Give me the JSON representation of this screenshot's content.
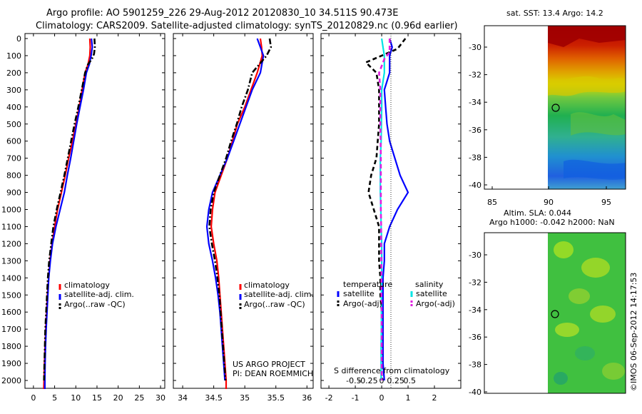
{
  "header": {
    "line1": "Argo profile: AO 5901259_226 29-Aug-2012 20120830_10 34.511S 90.473E",
    "line2": "Climatology: CARS2009. Satellite-adjusted climatology: synTS_20120829.nc (0.96d earlier)"
  },
  "side_text": {
    "sst_title": "sat. SST: 13.4 Argo: 14.2",
    "sla_title_1": "Altim. SLA: 0.044",
    "sla_title_2": "Argo h1000: -0.042 h2000: NaN",
    "credit": "©IMOS 06-Sep-2012 14:17:53",
    "project_1": "US ARGO PROJECT",
    "project_2": "PI: DEAN ROEMMICH"
  },
  "colors": {
    "climatology": "#ff0000",
    "satellite": "#0000ff",
    "argo": "#000000",
    "sal_sat": "#00e5e5",
    "sal_argo": "#e020e0"
  },
  "chart_data": [
    {
      "type": "line",
      "panel": "temperature",
      "ylim": [
        2050,
        0
      ],
      "xlim": [
        -2,
        31
      ],
      "xticks": [
        "0",
        "5",
        "10",
        "15",
        "20",
        "25",
        "30"
      ],
      "yticks": [
        "0",
        "100",
        "200",
        "300",
        "400",
        "500",
        "600",
        "700",
        "800",
        "900",
        "1000",
        "1100",
        "1200",
        "1300",
        "1400",
        "1500",
        "1600",
        "1700",
        "1800",
        "1900",
        "2000"
      ],
      "legend": [
        "climatology",
        "satellite-adj. clim.",
        "Argo(..raw -QC)"
      ],
      "series": [
        {
          "name": "climatology",
          "style": "solid",
          "color": "#ff0000",
          "points": [
            [
              13.3,
              0
            ],
            [
              13.4,
              50
            ],
            [
              13.3,
              100
            ],
            [
              12.9,
              150
            ],
            [
              12.2,
              200
            ],
            [
              11.5,
              300
            ],
            [
              10.8,
              400
            ],
            [
              10.0,
              500
            ],
            [
              9.2,
              600
            ],
            [
              8.3,
              700
            ],
            [
              7.5,
              800
            ],
            [
              6.6,
              900
            ],
            [
              5.7,
              1000
            ],
            [
              5.0,
              1100
            ],
            [
              4.4,
              1200
            ],
            [
              3.9,
              1300
            ],
            [
              3.6,
              1400
            ],
            [
              3.3,
              1500
            ],
            [
              3.1,
              1600
            ],
            [
              2.9,
              1700
            ],
            [
              2.75,
              1800
            ],
            [
              2.6,
              1900
            ],
            [
              2.5,
              2000
            ],
            [
              2.45,
              2050
            ]
          ]
        },
        {
          "name": "satellite-adj. clim.",
          "style": "solid",
          "color": "#0000ff",
          "points": [
            [
              13.7,
              0
            ],
            [
              13.9,
              50
            ],
            [
              13.6,
              100
            ],
            [
              13.2,
              150
            ],
            [
              12.5,
              200
            ],
            [
              11.8,
              300
            ],
            [
              11.0,
              400
            ],
            [
              10.2,
              500
            ],
            [
              9.5,
              600
            ],
            [
              8.8,
              700
            ],
            [
              8.0,
              800
            ],
            [
              7.3,
              900
            ],
            [
              6.3,
              1000
            ],
            [
              5.3,
              1100
            ],
            [
              4.5,
              1200
            ],
            [
              4.0,
              1300
            ],
            [
              3.6,
              1400
            ],
            [
              3.4,
              1500
            ],
            [
              3.2,
              1600
            ],
            [
              3.0,
              1700
            ],
            [
              2.85,
              1800
            ],
            [
              2.75,
              1900
            ],
            [
              2.7,
              2000
            ],
            [
              2.7,
              2050
            ]
          ]
        },
        {
          "name": "Argo(..raw -QC)",
          "style": "dashdot",
          "color": "#000000",
          "points": [
            [
              14.4,
              0
            ],
            [
              14.5,
              50
            ],
            [
              14.3,
              90
            ],
            [
              13.8,
              120
            ],
            [
              12.9,
              150
            ],
            [
              12.2,
              200
            ],
            [
              11.4,
              300
            ],
            [
              10.6,
              400
            ],
            [
              9.7,
              500
            ],
            [
              8.9,
              600
            ],
            [
              8.1,
              700
            ],
            [
              7.3,
              800
            ],
            [
              6.4,
              900
            ],
            [
              5.5,
              1000
            ],
            [
              4.7,
              1100
            ],
            [
              4.2,
              1200
            ],
            [
              3.7,
              1300
            ],
            [
              3.4,
              1400
            ],
            [
              3.2,
              1500
            ],
            [
              3.0,
              1600
            ],
            [
              2.8,
              1700
            ],
            [
              2.7,
              1800
            ],
            [
              2.6,
              1900
            ],
            [
              2.5,
              2000
            ]
          ]
        }
      ]
    },
    {
      "type": "line",
      "panel": "salinity",
      "ylim": [
        2050,
        0
      ],
      "xlim": [
        33.85,
        36.1
      ],
      "xticks": [
        "34",
        "34.5",
        "35",
        "35.5",
        "36"
      ],
      "legend": [
        "climatology",
        "satellite-adj. clim.",
        "Argo(..raw -QC)"
      ],
      "series": [
        {
          "name": "climatology",
          "style": "solid",
          "color": "#ff0000",
          "points": [
            [
              35.25,
              0
            ],
            [
              35.27,
              50
            ],
            [
              35.28,
              100
            ],
            [
              35.2,
              200
            ],
            [
              35.1,
              300
            ],
            [
              35.0,
              400
            ],
            [
              34.88,
              500
            ],
            [
              34.8,
              600
            ],
            [
              34.72,
              700
            ],
            [
              34.62,
              800
            ],
            [
              34.52,
              900
            ],
            [
              34.48,
              1000
            ],
            [
              34.46,
              1100
            ],
            [
              34.5,
              1200
            ],
            [
              34.55,
              1300
            ],
            [
              34.58,
              1400
            ],
            [
              34.6,
              1500
            ],
            [
              34.62,
              1600
            ],
            [
              34.64,
              1700
            ],
            [
              34.66,
              1800
            ],
            [
              34.68,
              1900
            ],
            [
              34.7,
              2000
            ],
            [
              34.7,
              2050
            ]
          ]
        },
        {
          "name": "satellite-adj. clim.",
          "style": "solid",
          "color": "#0000ff",
          "points": [
            [
              35.2,
              0
            ],
            [
              35.25,
              50
            ],
            [
              35.3,
              100
            ],
            [
              35.25,
              200
            ],
            [
              35.12,
              300
            ],
            [
              35.02,
              400
            ],
            [
              34.92,
              500
            ],
            [
              34.82,
              600
            ],
            [
              34.72,
              700
            ],
            [
              34.6,
              800
            ],
            [
              34.48,
              900
            ],
            [
              34.42,
              1000
            ],
            [
              34.39,
              1100
            ],
            [
              34.42,
              1200
            ],
            [
              34.48,
              1300
            ],
            [
              34.53,
              1400
            ],
            [
              34.57,
              1500
            ],
            [
              34.6,
              1600
            ],
            [
              34.62,
              1700
            ],
            [
              34.64,
              1800
            ],
            [
              34.66,
              1900
            ],
            [
              34.68,
              2000
            ]
          ]
        },
        {
          "name": "Argo(..raw -QC)",
          "style": "dashdot",
          "color": "#000000",
          "points": [
            [
              35.4,
              0
            ],
            [
              35.42,
              50
            ],
            [
              35.35,
              100
            ],
            [
              35.12,
              200
            ],
            [
              35.05,
              300
            ],
            [
              34.95,
              400
            ],
            [
              34.87,
              500
            ],
            [
              34.78,
              600
            ],
            [
              34.7,
              700
            ],
            [
              34.6,
              800
            ],
            [
              34.5,
              900
            ],
            [
              34.45,
              1000
            ],
            [
              34.43,
              1100
            ],
            [
              34.47,
              1200
            ],
            [
              34.52,
              1300
            ],
            [
              34.56,
              1400
            ],
            [
              34.59,
              1500
            ],
            [
              34.61,
              1600
            ],
            [
              34.63,
              1700
            ],
            [
              34.65,
              1800
            ],
            [
              34.67,
              1900
            ],
            [
              34.69,
              2000
            ]
          ]
        }
      ]
    },
    {
      "type": "line",
      "panel": "difference",
      "ylim": [
        2050,
        0
      ],
      "xlim": [
        -2.3,
        3.0
      ],
      "xticks_T": [
        "-2",
        "-1",
        "0",
        "1",
        "2"
      ],
      "xticks_S": [
        "-0.5",
        "-0.25",
        "0",
        "0.25",
        "0.5"
      ],
      "xlabel": "S difference from climatology",
      "legend": {
        "temperature_header": "temperature",
        "salinity_header": "salinity",
        "t_sat": "satellite",
        "t_argo": "Argo(-adj)",
        "s_sat": "satellite",
        "s_argo": "Argo(-adj)"
      },
      "series": [
        {
          "name": "temperature satellite",
          "style": "solid",
          "color": "#0000ff",
          "points": [
            [
              0.3,
              0
            ],
            [
              0.4,
              50
            ],
            [
              0.3,
              100
            ],
            [
              0.3,
              200
            ],
            [
              0.1,
              300
            ],
            [
              0.15,
              400
            ],
            [
              0.2,
              500
            ],
            [
              0.3,
              600
            ],
            [
              0.5,
              700
            ],
            [
              0.7,
              800
            ],
            [
              1.0,
              900
            ],
            [
              0.6,
              1000
            ],
            [
              0.3,
              1100
            ],
            [
              0.1,
              1200
            ],
            [
              0.1,
              1300
            ],
            [
              0.05,
              1400
            ],
            [
              0.05,
              1500
            ],
            [
              0.05,
              1600
            ],
            [
              0.05,
              1700
            ],
            [
              0.05,
              1800
            ],
            [
              0.05,
              1900
            ],
            [
              0.1,
              2000
            ]
          ]
        },
        {
          "name": "temperature Argo(-adj)",
          "style": "dash",
          "color": "#000000",
          "points": [
            [
              0.9,
              0
            ],
            [
              0.6,
              60
            ],
            [
              -0.6,
              140
            ],
            [
              -0.2,
              200
            ],
            [
              -0.1,
              300
            ],
            [
              -0.1,
              400
            ],
            [
              -0.1,
              500
            ],
            [
              -0.15,
              600
            ],
            [
              -0.2,
              700
            ],
            [
              -0.4,
              800
            ],
            [
              -0.5,
              900
            ],
            [
              -0.3,
              1000
            ],
            [
              -0.1,
              1100
            ],
            [
              -0.1,
              1200
            ],
            [
              -0.1,
              1300
            ],
            [
              -0.05,
              1400
            ],
            [
              -0.05,
              1500
            ],
            [
              0.0,
              1600
            ],
            [
              0.0,
              1700
            ],
            [
              0.0,
              1800
            ],
            [
              0.0,
              1900
            ],
            [
              0.0,
              2000
            ]
          ]
        },
        {
          "name": "salinity satellite",
          "style": "solid",
          "color": "#00e5e5",
          "points": [
            [
              0.0,
              0
            ],
            [
              0.05,
              50
            ],
            [
              0.1,
              100
            ],
            [
              0.1,
              200
            ],
            [
              0.0,
              300
            ],
            [
              0.0,
              400
            ],
            [
              -0.01,
              500
            ],
            [
              -0.02,
              600
            ],
            [
              -0.05,
              700
            ],
            [
              -0.05,
              800
            ],
            [
              -0.05,
              900
            ],
            [
              -0.03,
              1000
            ],
            [
              -0.02,
              1100
            ],
            [
              0.0,
              1200
            ],
            [
              0.0,
              1300
            ],
            [
              0.0,
              1400
            ],
            [
              -0.01,
              1500
            ],
            [
              -0.01,
              1600
            ],
            [
              -0.01,
              1700
            ],
            [
              -0.02,
              1800
            ],
            [
              -0.02,
              1900
            ],
            [
              -0.02,
              2000
            ]
          ]
        },
        {
          "name": "salinity Argo(-adj)",
          "style": "dash",
          "color": "#e020e0",
          "points": [
            [
              0.3,
              0
            ],
            [
              0.3,
              80
            ],
            [
              0.1,
              120
            ],
            [
              -0.1,
              200
            ],
            [
              -0.05,
              300
            ],
            [
              -0.05,
              400
            ],
            [
              -0.05,
              500
            ],
            [
              -0.04,
              600
            ],
            [
              -0.03,
              700
            ],
            [
              -0.03,
              800
            ],
            [
              -0.03,
              900
            ],
            [
              -0.03,
              1000
            ],
            [
              -0.02,
              1100
            ],
            [
              -0.02,
              1200
            ],
            [
              -0.01,
              1300
            ],
            [
              -0.01,
              1400
            ],
            [
              -0.01,
              1500
            ],
            [
              0.0,
              1600
            ],
            [
              0.0,
              1700
            ],
            [
              0.0,
              1800
            ],
            [
              0.0,
              1900
            ],
            [
              0.0,
              2000
            ]
          ]
        }
      ]
    },
    {
      "type": "heatmap",
      "panel": "sst_map",
      "xticks": [
        "85",
        "90",
        "95"
      ],
      "yticks": [
        "-30",
        "-32",
        "-34",
        "-36",
        "-38",
        "-40"
      ],
      "marker": {
        "lon": 90.473,
        "lat": -34.511
      }
    },
    {
      "type": "heatmap",
      "panel": "sla_map",
      "yticks": [
        "-30",
        "-32",
        "-34",
        "-36",
        "-38",
        "-40"
      ],
      "marker": {
        "lon": 90.473,
        "lat": -34.511
      }
    }
  ]
}
